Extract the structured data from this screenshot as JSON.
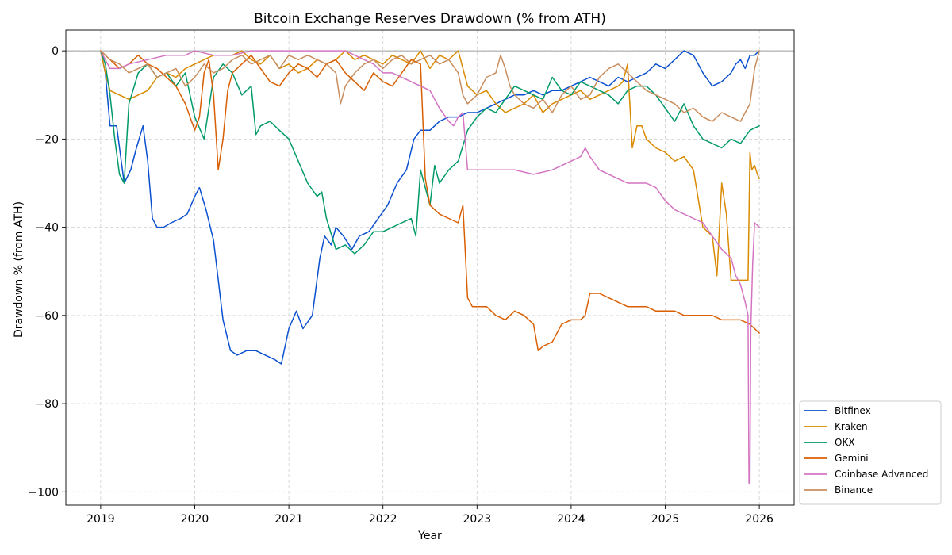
{
  "chart_data": {
    "type": "line",
    "title": "Bitcoin Exchange Reserves Drawdown (% from ATH)",
    "xlabel": "Year",
    "ylabel": "Drawdown % (from ATH)",
    "xlim": [
      2018.63,
      2026.37
    ],
    "ylim": [
      -103,
      4.7
    ],
    "xticks": [
      2019,
      2020,
      2021,
      2022,
      2023,
      2024,
      2025,
      2026
    ],
    "xtick_labels": [
      "2019",
      "2020",
      "2021",
      "2022",
      "2023",
      "2024",
      "2025",
      "2026"
    ],
    "yticks": [
      0,
      -20,
      -40,
      -60,
      -80,
      -100
    ],
    "ytick_labels": [
      "0",
      "−20",
      "−40",
      "−60",
      "−80",
      "−100"
    ],
    "grid": true,
    "reference_line_y": 0,
    "legend_position": "lower-right",
    "series": [
      {
        "name": "Bitfinex",
        "color": "#0b50d0",
        "x": [
          2019.0,
          2019.05,
          2019.1,
          2019.17,
          2019.25,
          2019.32,
          2019.38,
          2019.45,
          2019.5,
          2019.55,
          2019.6,
          2019.67,
          2019.75,
          2019.85,
          2019.92,
          2020.0,
          2020.05,
          2020.12,
          2020.2,
          2020.3,
          2020.38,
          2020.45,
          2020.55,
          2020.65,
          2020.75,
          2020.85,
          2020.92,
          2021.0,
          2021.08,
          2021.15,
          2021.25,
          2021.33,
          2021.38,
          2021.45,
          2021.5,
          2021.58,
          2021.67,
          2021.75,
          2021.85,
          2021.95,
          2022.05,
          2022.15,
          2022.25,
          2022.33,
          2022.4,
          2022.5,
          2022.6,
          2022.7,
          2022.8,
          2022.9,
          2023.0,
          2023.1,
          2023.2,
          2023.3,
          2023.4,
          2023.5,
          2023.6,
          2023.7,
          2023.8,
          2023.9,
          2024.0,
          2024.1,
          2024.2,
          2024.3,
          2024.4,
          2024.5,
          2024.6,
          2024.7,
          2024.8,
          2024.9,
          2025.0,
          2025.1,
          2025.15,
          2025.2,
          2025.3,
          2025.4,
          2025.5,
          2025.6,
          2025.7,
          2025.75,
          2025.8,
          2025.85,
          2025.9,
          2025.95,
          2026.0
        ],
        "values": [
          0,
          -5,
          -17,
          -17,
          -30,
          -27,
          -22,
          -17,
          -25,
          -38,
          -40,
          -40,
          -39,
          -38,
          -37,
          -33,
          -31,
          -36,
          -43,
          -61,
          -68,
          -69,
          -68,
          -68,
          -69,
          -70,
          -71,
          -63,
          -59,
          -63,
          -60,
          -47,
          -42,
          -44,
          -40,
          -42,
          -45,
          -42,
          -41,
          -38,
          -35,
          -30,
          -27,
          -20,
          -18,
          -18,
          -16,
          -15,
          -15,
          -14,
          -14,
          -13,
          -12,
          -11,
          -10,
          -10,
          -9,
          -10,
          -9,
          -9,
          -8,
          -7,
          -6,
          -7,
          -8,
          -6,
          -7,
          -6,
          -5,
          -3,
          -4,
          -2,
          -1,
          0,
          -1,
          -5,
          -8,
          -7,
          -5,
          -3,
          -2,
          -4,
          -1,
          -1,
          0
        ]
      },
      {
        "name": "Kraken",
        "color": "#d98a00",
        "x": [
          2019.0,
          2019.05,
          2019.1,
          2019.2,
          2019.3,
          2019.4,
          2019.5,
          2019.6,
          2019.7,
          2019.8,
          2019.9,
          2020.0,
          2020.1,
          2020.2,
          2020.3,
          2020.4,
          2020.5,
          2020.6,
          2020.7,
          2020.8,
          2020.9,
          2021.0,
          2021.1,
          2021.2,
          2021.3,
          2021.4,
          2021.5,
          2021.6,
          2021.7,
          2021.8,
          2021.9,
          2022.0,
          2022.1,
          2022.2,
          2022.3,
          2022.4,
          2022.5,
          2022.6,
          2022.7,
          2022.8,
          2022.9,
          2023.0,
          2023.1,
          2023.2,
          2023.3,
          2023.4,
          2023.5,
          2023.6,
          2023.7,
          2023.8,
          2023.9,
          2024.0,
          2024.1,
          2024.2,
          2024.3,
          2024.4,
          2024.5,
          2024.55,
          2024.6,
          2024.65,
          2024.7,
          2024.75,
          2024.8,
          2024.9,
          2025.0,
          2025.1,
          2025.2,
          2025.3,
          2025.4,
          2025.5,
          2025.55,
          2025.6,
          2025.65,
          2025.7,
          2025.75,
          2025.8,
          2025.85,
          2025.88,
          2025.9,
          2025.92,
          2025.95,
          2025.98,
          2026.0
        ],
        "values": [
          0,
          -5,
          -9,
          -10,
          -11,
          -10,
          -9,
          -6,
          -5,
          -6,
          -4,
          -3,
          -2,
          -1,
          -1,
          -1,
          0,
          -2,
          -3,
          -1,
          -4,
          -3,
          -5,
          -4,
          -2,
          -3,
          -2,
          0,
          -2,
          -1,
          -2,
          -3,
          -1,
          -2,
          -3,
          0,
          -4,
          -1,
          -2,
          0,
          -8,
          -10,
          -9,
          -12,
          -14,
          -13,
          -12,
          -10,
          -14,
          -12,
          -11,
          -10,
          -9,
          -11,
          -10,
          -9,
          -8,
          -7,
          -3,
          -22,
          -17,
          -17,
          -20,
          -22,
          -23,
          -25,
          -24,
          -27,
          -40,
          -42,
          -51,
          -30,
          -37,
          -52,
          -52,
          -52,
          -52,
          -52,
          -23,
          -27,
          -26,
          -28,
          -29
        ]
      },
      {
        "name": "OKX",
        "color": "#009a6a",
        "x": [
          2019.0,
          2019.05,
          2019.1,
          2019.15,
          2019.2,
          2019.25,
          2019.3,
          2019.4,
          2019.5,
          2019.6,
          2019.7,
          2019.8,
          2019.9,
          2020.0,
          2020.1,
          2020.2,
          2020.3,
          2020.4,
          2020.5,
          2020.6,
          2020.65,
          2020.7,
          2020.8,
          2020.9,
          2021.0,
          2021.1,
          2021.2,
          2021.3,
          2021.35,
          2021.4,
          2021.5,
          2021.6,
          2021.7,
          2021.8,
          2021.9,
          2022.0,
          2022.1,
          2022.2,
          2022.3,
          2022.35,
          2022.4,
          2022.5,
          2022.55,
          2022.6,
          2022.7,
          2022.8,
          2022.9,
          2023.0,
          2023.1,
          2023.2,
          2023.3,
          2023.4,
          2023.5,
          2023.6,
          2023.7,
          2023.8,
          2023.9,
          2024.0,
          2024.1,
          2024.2,
          2024.3,
          2024.4,
          2024.5,
          2024.6,
          2024.7,
          2024.8,
          2024.9,
          2025.0,
          2025.1,
          2025.2,
          2025.3,
          2025.4,
          2025.5,
          2025.6,
          2025.7,
          2025.8,
          2025.9,
          2026.0
        ],
        "values": [
          0,
          -3,
          -10,
          -20,
          -28,
          -30,
          -12,
          -5,
          -3,
          -6,
          -5,
          -8,
          -5,
          -15,
          -20,
          -6,
          -3,
          -5,
          -10,
          -8,
          -19,
          -17,
          -16,
          -18,
          -20,
          -25,
          -30,
          -33,
          -32,
          -38,
          -45,
          -44,
          -46,
          -44,
          -41,
          -41,
          -40,
          -39,
          -38,
          -42,
          -27,
          -35,
          -26,
          -30,
          -27,
          -25,
          -18,
          -15,
          -13,
          -14,
          -11,
          -8,
          -9,
          -10,
          -11,
          -6,
          -9,
          -10,
          -7,
          -8,
          -9,
          -10,
          -12,
          -9,
          -8,
          -8,
          -10,
          -13,
          -16,
          -12,
          -17,
          -20,
          -21,
          -22,
          -20,
          -21,
          -18,
          -17
        ]
      },
      {
        "name": "Gemini",
        "color": "#d95f02",
        "x": [
          2019.0,
          2019.1,
          2019.2,
          2019.3,
          2019.4,
          2019.5,
          2019.6,
          2019.7,
          2019.8,
          2019.9,
          2020.0,
          2020.05,
          2020.1,
          2020.15,
          2020.2,
          2020.25,
          2020.3,
          2020.35,
          2020.4,
          2020.5,
          2020.6,
          2020.7,
          2020.8,
          2020.9,
          2021.0,
          2021.1,
          2021.2,
          2021.3,
          2021.4,
          2021.5,
          2021.6,
          2021.7,
          2021.8,
          2021.9,
          2022.0,
          2022.1,
          2022.2,
          2022.3,
          2022.4,
          2022.45,
          2022.5,
          2022.6,
          2022.7,
          2022.8,
          2022.85,
          2022.9,
          2022.95,
          2023.0,
          2023.1,
          2023.2,
          2023.3,
          2023.4,
          2023.5,
          2023.6,
          2023.65,
          2023.7,
          2023.8,
          2023.9,
          2024.0,
          2024.1,
          2024.15,
          2024.2,
          2024.3,
          2024.4,
          2024.5,
          2024.6,
          2024.7,
          2024.8,
          2024.9,
          2025.0,
          2025.1,
          2025.2,
          2025.3,
          2025.4,
          2025.5,
          2025.6,
          2025.7,
          2025.8,
          2025.9,
          2026.0
        ],
        "values": [
          0,
          -2,
          -4,
          -3,
          -1,
          -3,
          -4,
          -6,
          -8,
          -12,
          -18,
          -15,
          -5,
          -2,
          -10,
          -27,
          -20,
          -9,
          -5,
          -3,
          -1,
          -4,
          -7,
          -8,
          -5,
          -3,
          -4,
          -6,
          -3,
          -2,
          -5,
          -7,
          -9,
          -5,
          -7,
          -8,
          -5,
          -2,
          -3,
          -29,
          -35,
          -37,
          -38,
          -39,
          -35,
          -56,
          -58,
          -58,
          -58,
          -60,
          -61,
          -59,
          -60,
          -62,
          -68,
          -67,
          -66,
          -62,
          -61,
          -61,
          -60,
          -55,
          -55,
          -56,
          -57,
          -58,
          -58,
          -58,
          -59,
          -59,
          -59,
          -60,
          -60,
          -60,
          -60,
          -61,
          -61,
          -61,
          -62,
          -64
        ]
      },
      {
        "name": "Coinbase Advanced",
        "color": "#d474c2",
        "x": [
          2019.0,
          2019.05,
          2019.1,
          2019.2,
          2019.3,
          2019.5,
          2019.7,
          2019.9,
          2020.0,
          2020.2,
          2020.4,
          2020.6,
          2020.8,
          2021.0,
          2021.2,
          2021.4,
          2021.6,
          2021.7,
          2021.8,
          2021.9,
          2022.0,
          2022.1,
          2022.2,
          2022.3,
          2022.4,
          2022.5,
          2022.6,
          2022.7,
          2022.75,
          2022.8,
          2022.85,
          2022.9,
          2023.0,
          2023.2,
          2023.4,
          2023.6,
          2023.8,
          2024.0,
          2024.1,
          2024.15,
          2024.2,
          2024.3,
          2024.4,
          2024.5,
          2024.6,
          2024.7,
          2024.8,
          2024.9,
          2025.0,
          2025.1,
          2025.2,
          2025.3,
          2025.4,
          2025.5,
          2025.6,
          2025.7,
          2025.75,
          2025.8,
          2025.85,
          2025.88,
          2025.89,
          2025.9,
          2025.91,
          2025.93,
          2025.95,
          2026.0
        ],
        "values": [
          0,
          -2,
          -4,
          -4,
          -3,
          -2,
          -1,
          -1,
          0,
          -1,
          -1,
          0,
          0,
          0,
          0,
          0,
          0,
          -1,
          -2,
          -3,
          -5,
          -5,
          -6,
          -7,
          -8,
          -9,
          -13,
          -16,
          -17,
          -15,
          -14,
          -27,
          -27,
          -27,
          -27,
          -28,
          -27,
          -25,
          -24,
          -22,
          -24,
          -27,
          -28,
          -29,
          -30,
          -30,
          -30,
          -31,
          -34,
          -36,
          -37,
          -38,
          -39,
          -42,
          -45,
          -47,
          -51,
          -53,
          -57,
          -60,
          -98,
          -98,
          -63,
          -48,
          -39,
          -40
        ]
      },
      {
        "name": "Binance",
        "color": "#c98d5d",
        "x": [
          2019.0,
          2019.1,
          2019.2,
          2019.3,
          2019.4,
          2019.5,
          2019.6,
          2019.7,
          2019.8,
          2019.9,
          2020.0,
          2020.1,
          2020.2,
          2020.3,
          2020.4,
          2020.5,
          2020.6,
          2020.7,
          2020.8,
          2020.9,
          2021.0,
          2021.1,
          2021.2,
          2021.3,
          2021.4,
          2021.5,
          2021.55,
          2021.6,
          2021.7,
          2021.8,
          2021.9,
          2022.0,
          2022.1,
          2022.2,
          2022.3,
          2022.4,
          2022.5,
          2022.6,
          2022.7,
          2022.8,
          2022.85,
          2022.9,
          2023.0,
          2023.1,
          2023.2,
          2023.25,
          2023.3,
          2023.35,
          2023.4,
          2023.5,
          2023.6,
          2023.7,
          2023.8,
          2023.9,
          2024.0,
          2024.1,
          2024.2,
          2024.3,
          2024.4,
          2024.5,
          2024.6,
          2024.7,
          2024.8,
          2024.9,
          2025.0,
          2025.1,
          2025.2,
          2025.3,
          2025.4,
          2025.5,
          2025.6,
          2025.7,
          2025.8,
          2025.85,
          2025.9,
          2025.95,
          2026.0
        ],
        "values": [
          0,
          -2,
          -3,
          -5,
          -4,
          -3,
          -6,
          -5,
          -4,
          -8,
          -6,
          -3,
          -5,
          -4,
          -2,
          -1,
          -3,
          -2,
          -1,
          -4,
          -1,
          -2,
          -1,
          -2,
          -3,
          -5,
          -12,
          -8,
          -5,
          -3,
          -2,
          -4,
          -2,
          -1,
          -3,
          -2,
          -1,
          -3,
          -2,
          -5,
          -10,
          -12,
          -10,
          -6,
          -5,
          -1,
          -4,
          -8,
          -10,
          -12,
          -13,
          -11,
          -14,
          -10,
          -8,
          -11,
          -10,
          -6,
          -4,
          -3,
          -5,
          -7,
          -9,
          -10,
          -11,
          -12,
          -14,
          -13,
          -15,
          -16,
          -14,
          -15,
          -16,
          -14,
          -12,
          -4,
          0
        ]
      }
    ]
  }
}
